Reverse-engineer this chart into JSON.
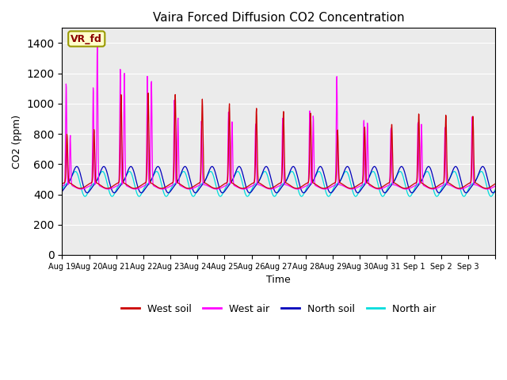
{
  "title": "Vaira Forced Diffusion CO2 Concentration",
  "xlabel": "Time",
  "ylabel": "CO2 (ppm)",
  "ylim": [
    0,
    1500
  ],
  "yticks": [
    0,
    200,
    400,
    600,
    800,
    1000,
    1200,
    1400
  ],
  "annotation_text": "VR_fd",
  "bg_color": "#ebebeb",
  "legend_entries": [
    "West soil",
    "West air",
    "North soil",
    "North air"
  ],
  "west_soil_color": "#cc0000",
  "west_air_color": "#ff00ff",
  "north_soil_color": "#0000bb",
  "north_air_color": "#00dddd",
  "n_days": 16,
  "points_per_day": 96,
  "x_tick_labels": [
    "Aug 19",
    "Aug 20",
    "Aug 21",
    "Aug 22",
    "Aug 23",
    "Aug 24",
    "Aug 25",
    "Aug 26",
    "Aug 27",
    "Aug 28",
    "Aug 29",
    "Aug 30",
    "Aug 31",
    "Sep 1",
    "Sep 2",
    "Sep 3"
  ],
  "grid_color": "#ffffff",
  "grid_linewidth": 0.8
}
